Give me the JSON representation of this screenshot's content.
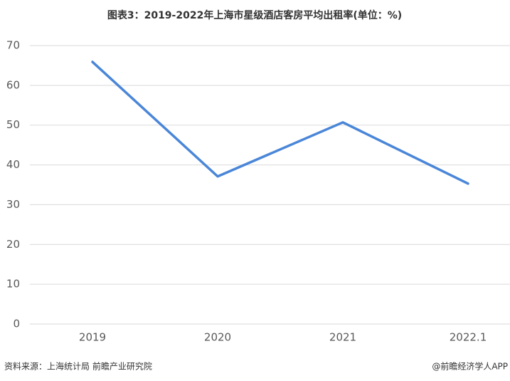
{
  "chart_data": {
    "type": "line",
    "title": "图表3：2019-2022年上海市星级酒店客房平均出租率(单位：%)",
    "categories": [
      "2019",
      "2020",
      "2021",
      "2022.1"
    ],
    "series": [
      {
        "name": "平均出租率",
        "color": "#4a86d8",
        "values": [
          65.9,
          37.1,
          50.7,
          35.3
        ]
      }
    ],
    "ylim": [
      0,
      70
    ],
    "yticks": [
      0,
      10,
      20,
      30,
      40,
      50,
      60,
      70
    ],
    "grid": true,
    "source": "资料来源：上海统计局 前瞻产业研究院",
    "credit": "@前瞻经济学人APP"
  }
}
